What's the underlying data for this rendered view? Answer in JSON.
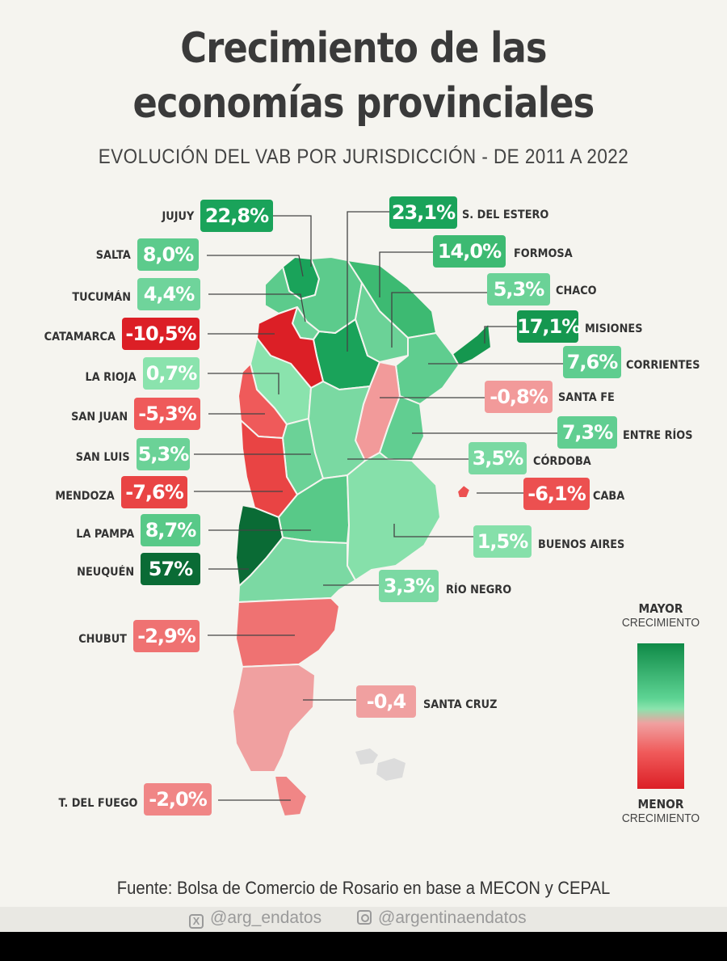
{
  "title": {
    "line1": "Crecimiento de las",
    "line2": "economías provinciales",
    "subtitle": "EVOLUCIÓN DEL VAB POR JURISDICCIÓN - DE 2011 A 2022"
  },
  "provinces": [
    {
      "name": "JUJUY",
      "value_label": "22,8%",
      "value": 22.8,
      "color": "#1aa35a"
    },
    {
      "name": "S. DEL ESTERO",
      "value_label": "23,1%",
      "value": 23.1,
      "color": "#1aa35a"
    },
    {
      "name": "SALTA",
      "value_label": "8,0%",
      "value": 8.0,
      "color": "#5ccb8c"
    },
    {
      "name": "FORMOSA",
      "value_label": "14,0%",
      "value": 14.0,
      "color": "#3dba72"
    },
    {
      "name": "TUCUMÁN",
      "value_label": "4,4%",
      "value": 4.4,
      "color": "#6fd49b"
    },
    {
      "name": "CHACO",
      "value_label": "5,3%",
      "value": 5.3,
      "color": "#6bd297"
    },
    {
      "name": "CATAMARCA",
      "value_label": "-10,5%",
      "value": -10.5,
      "color": "#dc1f26"
    },
    {
      "name": "MISIONES",
      "value_label": "17,1%",
      "value": 17.1,
      "color": "#15974f"
    },
    {
      "name": "CORRIENTES",
      "value_label": "7,6%",
      "value": 7.6,
      "color": "#5fcd8f"
    },
    {
      "name": "LA RIOJA",
      "value_label": "0,7%",
      "value": 0.7,
      "color": "#8ae3ad"
    },
    {
      "name": "SANTA FE",
      "value_label": "-0,8%",
      "value": -0.8,
      "color": "#f29a9a"
    },
    {
      "name": "SAN JUAN",
      "value_label": "-5,3%",
      "value": -5.3,
      "color": "#ef5a5a"
    },
    {
      "name": "ENTRE RÍOS",
      "value_label": "7,3%",
      "value": 7.3,
      "color": "#61ce91"
    },
    {
      "name": "SAN LUIS",
      "value_label": "5,3%",
      "value": 5.3,
      "color": "#6bd297"
    },
    {
      "name": "CÓRDOBA",
      "value_label": "3,5%",
      "value": 3.5,
      "color": "#7ad9a2"
    },
    {
      "name": "MENDOZA",
      "value_label": "-7,6%",
      "value": -7.6,
      "color": "#e94444"
    },
    {
      "name": "CABA",
      "value_label": "-6,1%",
      "value": -6.1,
      "color": "#ec5050"
    },
    {
      "name": "LA PAMPA",
      "value_label": "8,7%",
      "value": 8.7,
      "color": "#58c988"
    },
    {
      "name": "BUENOS AIRES",
      "value_label": "1,5%",
      "value": 1.5,
      "color": "#86e0aa"
    },
    {
      "name": "NEUQUÉN",
      "value_label": "57%",
      "value": 57,
      "color": "#0a6b35"
    },
    {
      "name": "RÍO NEGRO",
      "value_label": "3,3%",
      "value": 3.3,
      "color": "#7bd9a3"
    },
    {
      "name": "CHUBUT",
      "value_label": "-2,9%",
      "value": -2.9,
      "color": "#ef7272"
    },
    {
      "name": "SANTA CRUZ",
      "value_label": "-0,4",
      "value": -0.4,
      "color": "#f0a0a0"
    },
    {
      "name": "T. DEL FUEGO",
      "value_label": "-2,0%",
      "value": -2.0,
      "color": "#f08686"
    }
  ],
  "legend": {
    "top_bold": "MAYOR",
    "top_sub": "CRECIMIENTO",
    "bottom_bold": "MENOR",
    "bottom_sub": "CRECIMIENTO"
  },
  "source": "Fuente: Bolsa de Comercio de Rosario en base a MECON y CEPAL",
  "footer": {
    "twitter": "@arg_endatos",
    "instagram": "@argentinaendatos"
  }
}
